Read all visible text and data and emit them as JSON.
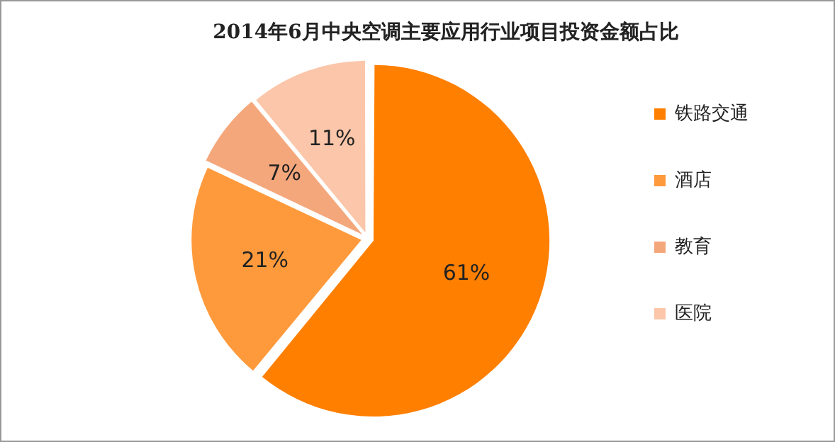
{
  "chart_data": {
    "type": "pie",
    "title": "2014年6月中央空调主要应用行业项目投资金额占比",
    "categories": [
      "铁路交通",
      "酒店",
      "教育",
      "医院"
    ],
    "values": [
      61,
      21,
      7,
      11
    ],
    "colors": [
      "#ff7f00",
      "#ff9a3c",
      "#f5a77c",
      "#fbc6a9"
    ],
    "value_labels": [
      "61%",
      "21%",
      "7%",
      "11%"
    ],
    "legend": "right"
  }
}
